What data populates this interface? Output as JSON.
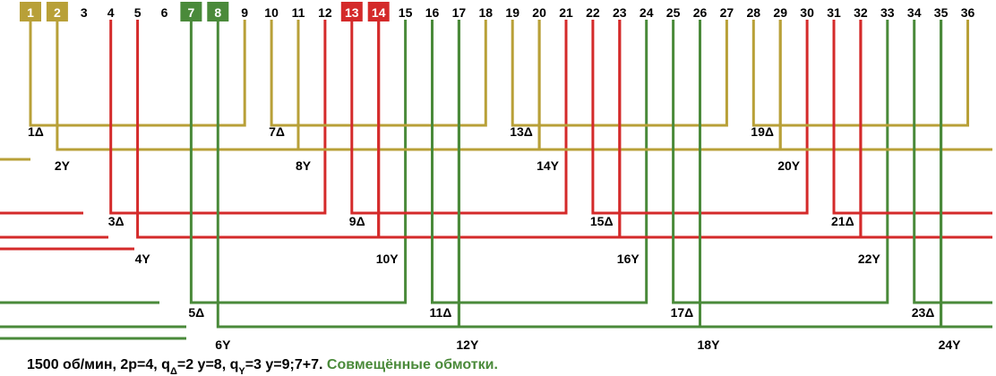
{
  "slots": [
    {
      "label": "1",
      "color": "#b8a038"
    },
    {
      "label": "2",
      "color": "#b8a038"
    },
    "3",
    "4",
    "5",
    "6",
    {
      "label": "7",
      "color": "#4a8a3a"
    },
    {
      "label": "8",
      "color": "#4a8a3a"
    },
    "9",
    "10",
    "11",
    "12",
    {
      "label": "13",
      "color": "#d42a2a"
    },
    {
      "label": "14",
      "color": "#d42a2a"
    },
    "15",
    "16",
    "17",
    "18",
    "19",
    "20",
    "21",
    "22",
    "23",
    "24",
    "25",
    "26",
    "27",
    "28",
    "29",
    "30",
    "31",
    "32",
    "33",
    "34",
    "35",
    "36"
  ],
  "coils": [
    "1Δ",
    "2Y",
    "3Δ",
    "4Y",
    "5Δ",
    "6Y",
    "7Δ",
    "8Y",
    "9Δ",
    "10Y",
    "11Δ",
    "12Y",
    "13Δ",
    "14Y",
    "15Δ",
    "16Y",
    "17Δ",
    "18Y",
    "19Δ",
    "20Y",
    "21Δ",
    "22Y",
    "23Δ",
    "24Y"
  ],
  "caption": {
    "parts": [
      "1500 об/мин, 2p=4, q",
      "Δ",
      "=2 y=8, q",
      "Y",
      "=3 y=9;7+7. "
    ],
    "highlight": "Совмещённые обмотки."
  }
}
